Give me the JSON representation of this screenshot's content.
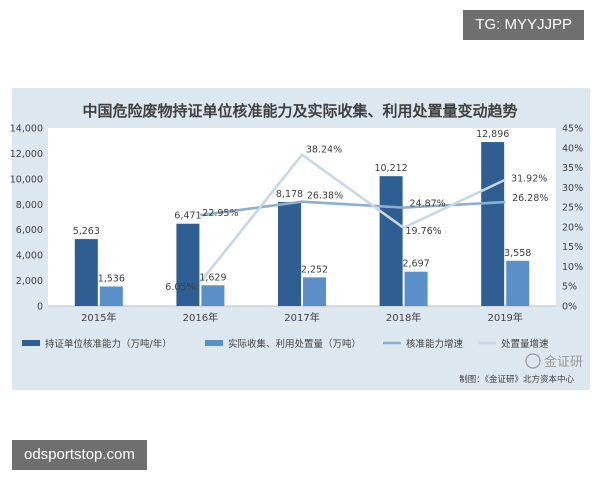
{
  "overlays": {
    "top_tag": "TG: MYYJJPP",
    "bottom_tag": "odsportstop.com",
    "watermark": "金证研",
    "source_note": "制图：《金证研》北方资本中心"
  },
  "colors": {
    "panel_bg": "#dde7f0",
    "plot_bg": "#ffffff",
    "bar_capacity": "#2f5e92",
    "bar_actual": "#5b8fc8",
    "line_capacity": "#8eaed1",
    "line_actual": "#c8d6e6",
    "text": "#404040"
  },
  "chart_data": {
    "type": "bar",
    "title": "中国危险废物持证单位核准能力及实际收集、利用处置量变动趋势",
    "categories": [
      "2015年",
      "2016年",
      "2017年",
      "2018年",
      "2019年"
    ],
    "y_left": {
      "ticks": [
        "0",
        "2,000",
        "4,000",
        "6,000",
        "8,000",
        "10,000",
        "12,000",
        "14,000"
      ],
      "range": [
        0,
        14000
      ]
    },
    "y_right": {
      "ticks": [
        "0%",
        "5%",
        "10%",
        "15%",
        "20%",
        "25%",
        "30%",
        "35%",
        "40%",
        "45%"
      ],
      "range": [
        0,
        45
      ]
    },
    "grid": false,
    "legend_position": "bottom",
    "series": [
      {
        "name": "持证单位核准能力（万吨/年）",
        "type": "bar",
        "axis": "left",
        "values": [
          5263,
          6471,
          8178,
          10212,
          12896
        ],
        "labels": [
          "5,263",
          "6,471",
          "8,178",
          "10,212",
          "12,896"
        ]
      },
      {
        "name": "实际收集、利用处置量（万吨）",
        "type": "bar",
        "axis": "left",
        "values": [
          1536,
          1629,
          2252,
          2697,
          3558
        ],
        "labels": [
          "1,536",
          "1,629",
          "2,252",
          "2,697",
          "3,558"
        ]
      },
      {
        "name": "核准能力增速",
        "type": "line",
        "axis": "right",
        "values": [
          null,
          22.95,
          26.38,
          24.87,
          26.28
        ],
        "labels": [
          "",
          "22.95%",
          "26.38%",
          "24.87%",
          "26.28%"
        ]
      },
      {
        "name": "处置量增速",
        "type": "line",
        "axis": "right",
        "values": [
          null,
          6.05,
          38.24,
          19.76,
          31.92
        ],
        "labels": [
          "",
          "6.05%",
          "38.24%",
          "19.76%",
          "31.92%"
        ]
      }
    ]
  }
}
